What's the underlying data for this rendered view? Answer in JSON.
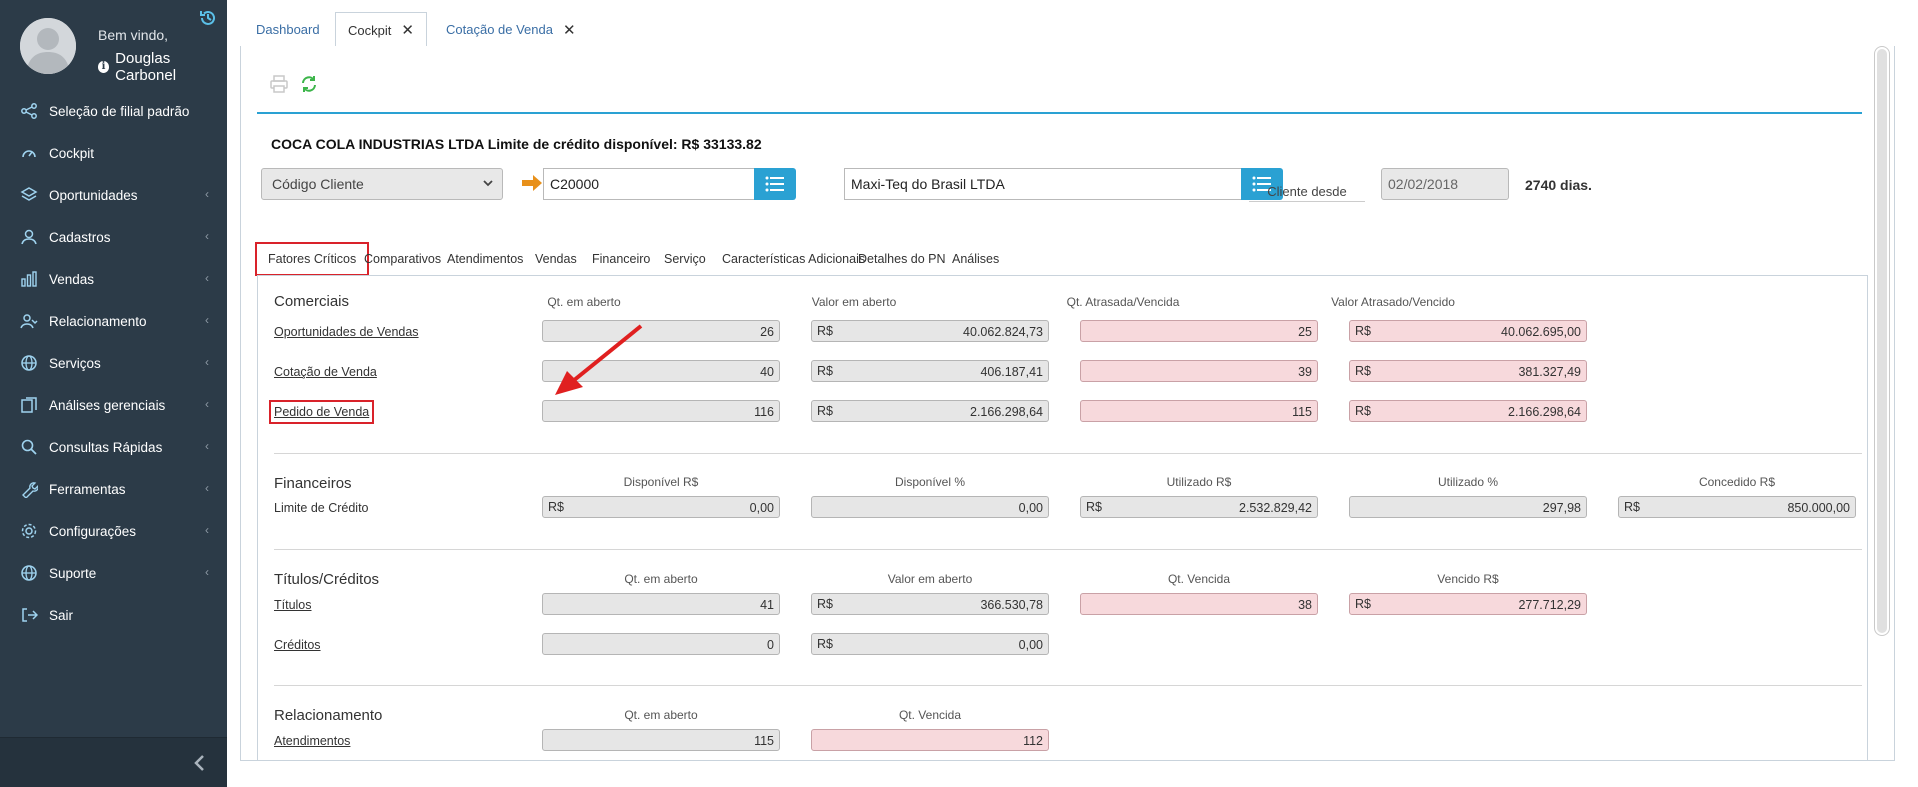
{
  "sidebar": {
    "welcome": "Bem vindo,",
    "user_name": "Douglas Carbonel",
    "items": [
      {
        "label": "Seleção de filial padrão",
        "icon": "share-icon",
        "has_chevron": false
      },
      {
        "label": "Cockpit",
        "icon": "dashboard-icon",
        "has_chevron": false
      },
      {
        "label": "Oportunidades",
        "icon": "layers-icon",
        "has_chevron": true
      },
      {
        "label": "Cadastros",
        "icon": "user-icon",
        "has_chevron": true
      },
      {
        "label": "Vendas",
        "icon": "bar-chart-icon",
        "has_chevron": true
      },
      {
        "label": "Relacionamento",
        "icon": "people-icon",
        "has_chevron": true
      },
      {
        "label": "Serviços",
        "icon": "globe-icon",
        "has_chevron": true
      },
      {
        "label": "Análises gerenciais",
        "icon": "copy-icon",
        "has_chevron": true
      },
      {
        "label": "Consultas Rápidas",
        "icon": "search-icon",
        "has_chevron": true
      },
      {
        "label": "Ferramentas",
        "icon": "wrench-icon",
        "has_chevron": true
      },
      {
        "label": "Configurações",
        "icon": "gear-icon",
        "has_chevron": true
      },
      {
        "label": "Suporte",
        "icon": "globe-icon",
        "has_chevron": true
      },
      {
        "label": "Sair",
        "icon": "logout-icon",
        "has_chevron": false
      }
    ],
    "chevron": "‹"
  },
  "top_tabs": [
    {
      "label": "Dashboard",
      "closable": false,
      "active": false
    },
    {
      "label": "Cockpit",
      "closable": true,
      "active": true
    },
    {
      "label": "Cotação de Venda",
      "closable": true,
      "active": false
    }
  ],
  "close_glyph": "✕",
  "header": {
    "company": "COCA COLA INDUSTRIAS LTDA Limite de crédito disponível: R$ 33133.82",
    "client_type_select": "Código Cliente",
    "client_code": "C20000",
    "client_name": "Maxi-Teq do Brasil LTDA",
    "client_since_label": "Cliente desde",
    "client_since_date": "02/02/2018",
    "days": "2740 dias."
  },
  "inner_tabs": [
    "Fatores Críticos",
    "Comparativos",
    "Atendimentos",
    "Vendas",
    "Financeiro",
    "Serviço",
    "Características Adicionais",
    "Detalhes do PN",
    "Análises"
  ],
  "currency": "R$",
  "sections": {
    "comerciais": {
      "title": "Comerciais",
      "headers": [
        "Qt. em aberto",
        "Valor em aberto",
        "Qt. Atrasada/Vencida",
        "Valor Atrasado/Vencido"
      ],
      "rows": [
        {
          "label": "Oportunidades de Vendas",
          "qt": "26",
          "valor": "40.062.824,73",
          "qt_atrasada": "25",
          "valor_atrasado": "40.062.695,00"
        },
        {
          "label": "Cotação de Venda",
          "qt": "40",
          "valor": "406.187,41",
          "qt_atrasada": "39",
          "valor_atrasado": "381.327,49"
        },
        {
          "label": "Pedido de Venda",
          "qt": "116",
          "valor": "2.166.298,64",
          "qt_atrasada": "115",
          "valor_atrasado": "2.166.298,64"
        }
      ]
    },
    "financeiros": {
      "title": "Financeiros",
      "headers": [
        "Disponível R$",
        "Disponível %",
        "Utilizado R$",
        "Utilizado %",
        "Concedido R$"
      ],
      "row": {
        "label": "Limite de Crédito",
        "disponivel": "0,00",
        "disponivel_pct": "0,00",
        "utilizado": "2.532.829,42",
        "utilizado_pct": "297,98",
        "concedido": "850.000,00"
      }
    },
    "titulos": {
      "title": "Títulos/Créditos",
      "headers": [
        "Qt. em aberto",
        "Valor em aberto",
        "Qt. Vencida",
        "Vencido R$"
      ],
      "rows": [
        {
          "label": "Títulos",
          "qt": "41",
          "valor": "366.530,78",
          "qt_vencida": "38",
          "vencido": "277.712,29"
        },
        {
          "label": "Créditos",
          "qt": "0",
          "valor": "0,00"
        }
      ]
    },
    "relacionamento": {
      "title": "Relacionamento",
      "headers": [
        "Qt. em aberto",
        "Qt. Vencida"
      ],
      "row": {
        "label": "Atendimentos",
        "qt": "115",
        "qt_vencida": "112"
      }
    }
  },
  "colors": {
    "sidebar_bg": "#2c3b48",
    "accent": "#2aa1d3",
    "highlight": "#d9222a",
    "overdue_bg": "#f7d9dc",
    "arrow": "#e8901a"
  }
}
